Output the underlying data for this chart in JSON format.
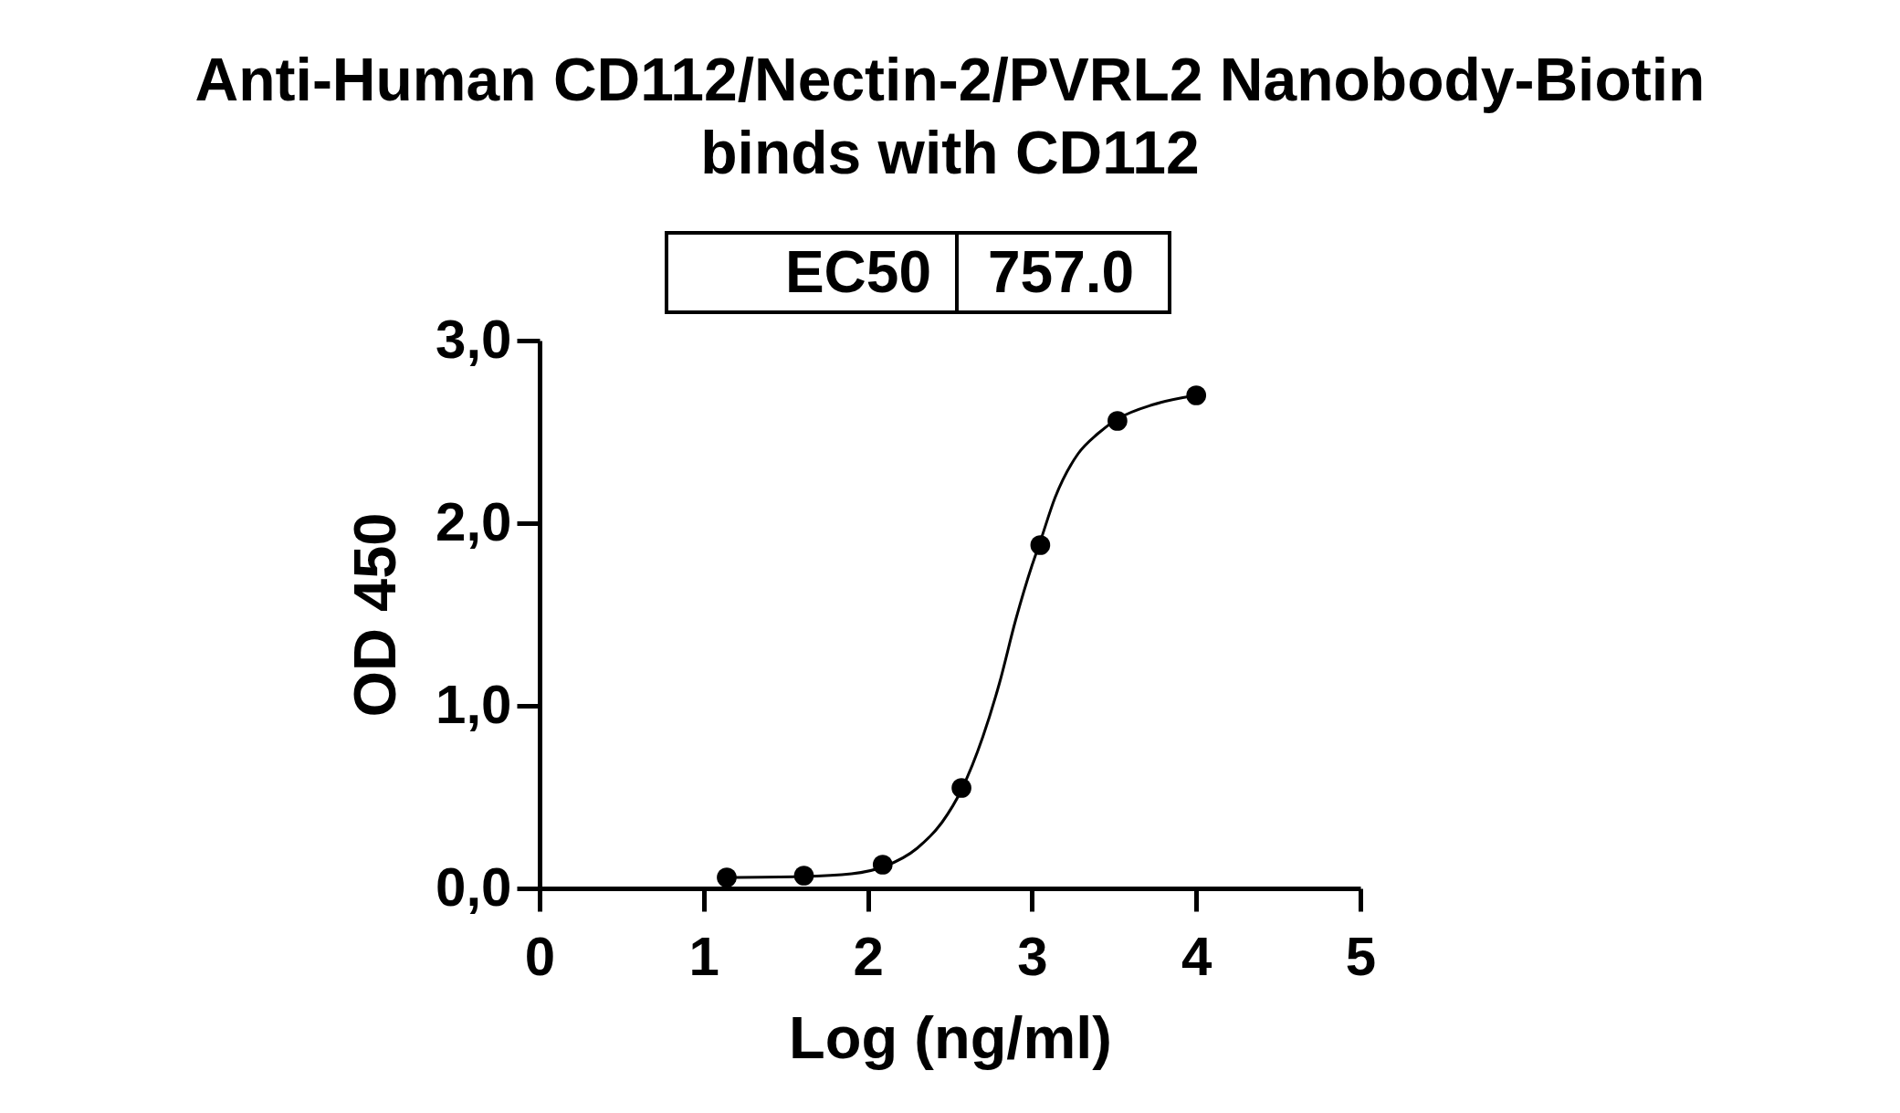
{
  "chart_data": {
    "type": "scatter",
    "title": "Anti-Human CD112/Nectin-2/PVRL2 Nanobody-Biotin binds with CD112",
    "xlabel": "Log (ng/ml)",
    "ylabel": "OD 450",
    "xlim": [
      0,
      5
    ],
    "ylim": [
      0,
      3
    ],
    "xticks": [
      0,
      1,
      2,
      3,
      4,
      5
    ],
    "yticks": [
      {
        "value": 0,
        "label": "0,0"
      },
      {
        "value": 1,
        "label": "1,0"
      },
      {
        "value": 2,
        "label": "2,0"
      },
      {
        "value": 3,
        "label": "3,0"
      }
    ],
    "annotations": [
      "EC50",
      "757.0"
    ],
    "series": [
      {
        "color": "#000000",
        "marker": "circle",
        "x": [
          1.14,
          1.61,
          2.09,
          2.57,
          3.05,
          3.52,
          4.0
        ],
        "values": [
          0.06,
          0.07,
          0.13,
          0.55,
          1.88,
          2.56,
          2.7
        ]
      },
      {
        "type": "line",
        "color": "#000000",
        "x": [
          1.14,
          1.6,
          1.9,
          2.1,
          2.3,
          2.45,
          2.57,
          2.7,
          2.8,
          2.9,
          3.0,
          3.05,
          3.14,
          3.28,
          3.4,
          3.52,
          3.74,
          4.0
        ],
        "values": [
          0.06,
          0.065,
          0.08,
          0.12,
          0.22,
          0.36,
          0.54,
          0.83,
          1.12,
          1.47,
          1.77,
          1.9,
          2.14,
          2.38,
          2.49,
          2.57,
          2.65,
          2.7
        ]
      }
    ]
  }
}
